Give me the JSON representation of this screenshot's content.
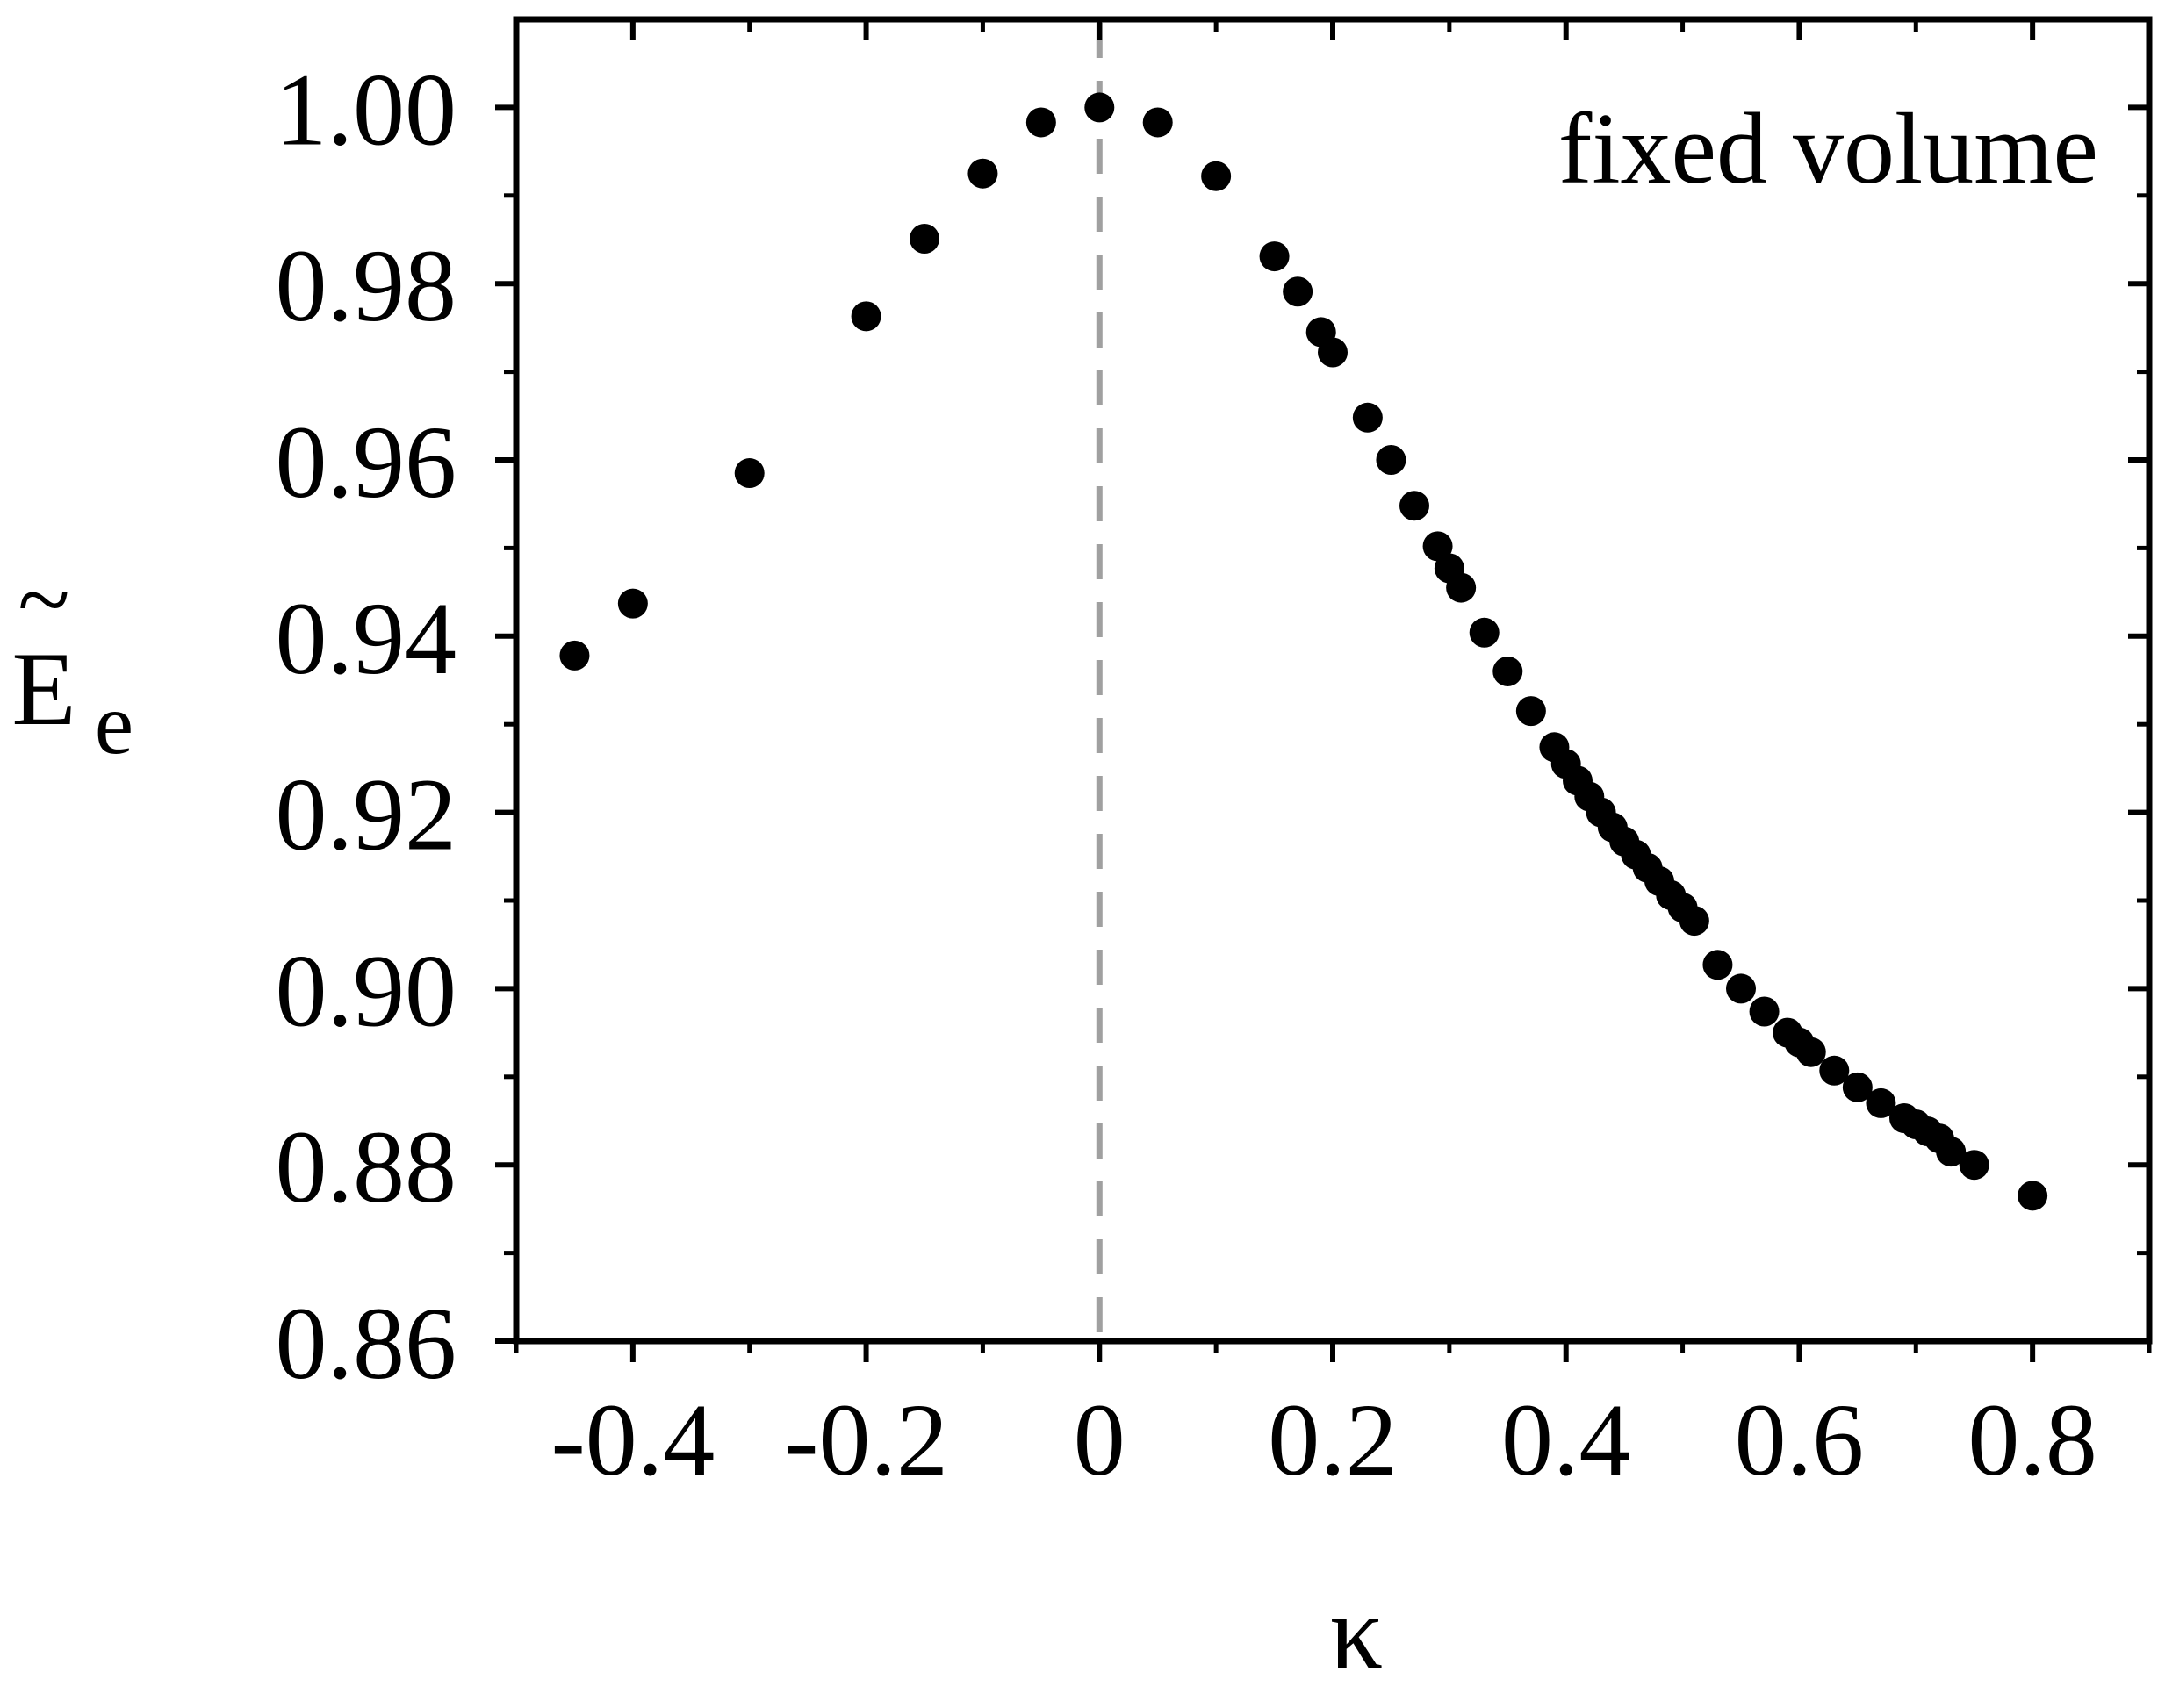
{
  "chart_data": {
    "type": "scatter",
    "xlabel": "κ",
    "ylabel": {
      "base": "E",
      "accent": "~",
      "subscript": "e"
    },
    "annotation": "fixed volume",
    "xlim": [
      -0.5,
      0.9
    ],
    "ylim": [
      0.86,
      1.01
    ],
    "xticks": [
      {
        "value": -0.4,
        "label": "-0.4"
      },
      {
        "value": -0.2,
        "label": "-0.2"
      },
      {
        "value": 0,
        "label": "0"
      },
      {
        "value": 0.2,
        "label": "0.2"
      },
      {
        "value": 0.4,
        "label": "0.4"
      },
      {
        "value": 0.6,
        "label": "0.6"
      },
      {
        "value": 0.8,
        "label": "0.8"
      }
    ],
    "yticks": [
      {
        "value": 0.86,
        "label": "0.86"
      },
      {
        "value": 0.88,
        "label": "0.88"
      },
      {
        "value": 0.9,
        "label": "0.90"
      },
      {
        "value": 0.92,
        "label": "0.92"
      },
      {
        "value": 0.94,
        "label": "0.94"
      },
      {
        "value": 0.96,
        "label": "0.96"
      },
      {
        "value": 0.98,
        "label": "0.98"
      },
      {
        "value": 1.0,
        "label": "1.00"
      }
    ],
    "reference_line": {
      "axis": "x",
      "value": 0,
      "style": "dashed",
      "color": "#a0a0a0"
    },
    "marker_color": "#000000",
    "grid": false,
    "points": [
      [
        -0.45,
        0.9378
      ],
      [
        -0.4,
        0.9437
      ],
      [
        -0.3,
        0.9585
      ],
      [
        -0.2,
        0.9763
      ],
      [
        -0.15,
        0.9851
      ],
      [
        -0.1,
        0.9925
      ],
      [
        -0.05,
        0.9983
      ],
      [
        0.0,
        1.0
      ],
      [
        0.05,
        0.9983
      ],
      [
        0.1,
        0.9922
      ],
      [
        0.15,
        0.9831
      ],
      [
        0.17,
        0.9791
      ],
      [
        0.19,
        0.9745
      ],
      [
        0.2,
        0.9722
      ],
      [
        0.23,
        0.9648
      ],
      [
        0.25,
        0.96
      ],
      [
        0.27,
        0.9548
      ],
      [
        0.29,
        0.9502
      ],
      [
        0.3,
        0.9477
      ],
      [
        0.31,
        0.9455
      ],
      [
        0.33,
        0.9404
      ],
      [
        0.35,
        0.936
      ],
      [
        0.37,
        0.9315
      ],
      [
        0.39,
        0.9274
      ],
      [
        0.4,
        0.9255
      ],
      [
        0.41,
        0.9236
      ],
      [
        0.42,
        0.9218
      ],
      [
        0.43,
        0.92
      ],
      [
        0.44,
        0.9183
      ],
      [
        0.45,
        0.9167
      ],
      [
        0.46,
        0.9152
      ],
      [
        0.47,
        0.9137
      ],
      [
        0.48,
        0.9122
      ],
      [
        0.49,
        0.9106
      ],
      [
        0.5,
        0.9092
      ],
      [
        0.51,
        0.9077
      ],
      [
        0.53,
        0.9027
      ],
      [
        0.55,
        0.9
      ],
      [
        0.57,
        0.8974
      ],
      [
        0.59,
        0.895
      ],
      [
        0.6,
        0.8939
      ],
      [
        0.61,
        0.8928
      ],
      [
        0.63,
        0.8907
      ],
      [
        0.65,
        0.8888
      ],
      [
        0.67,
        0.887
      ],
      [
        0.69,
        0.8853
      ],
      [
        0.7,
        0.8846
      ],
      [
        0.71,
        0.8838
      ],
      [
        0.72,
        0.883
      ],
      [
        0.73,
        0.8815
      ],
      [
        0.75,
        0.88
      ],
      [
        0.8,
        0.8765
      ]
    ]
  }
}
